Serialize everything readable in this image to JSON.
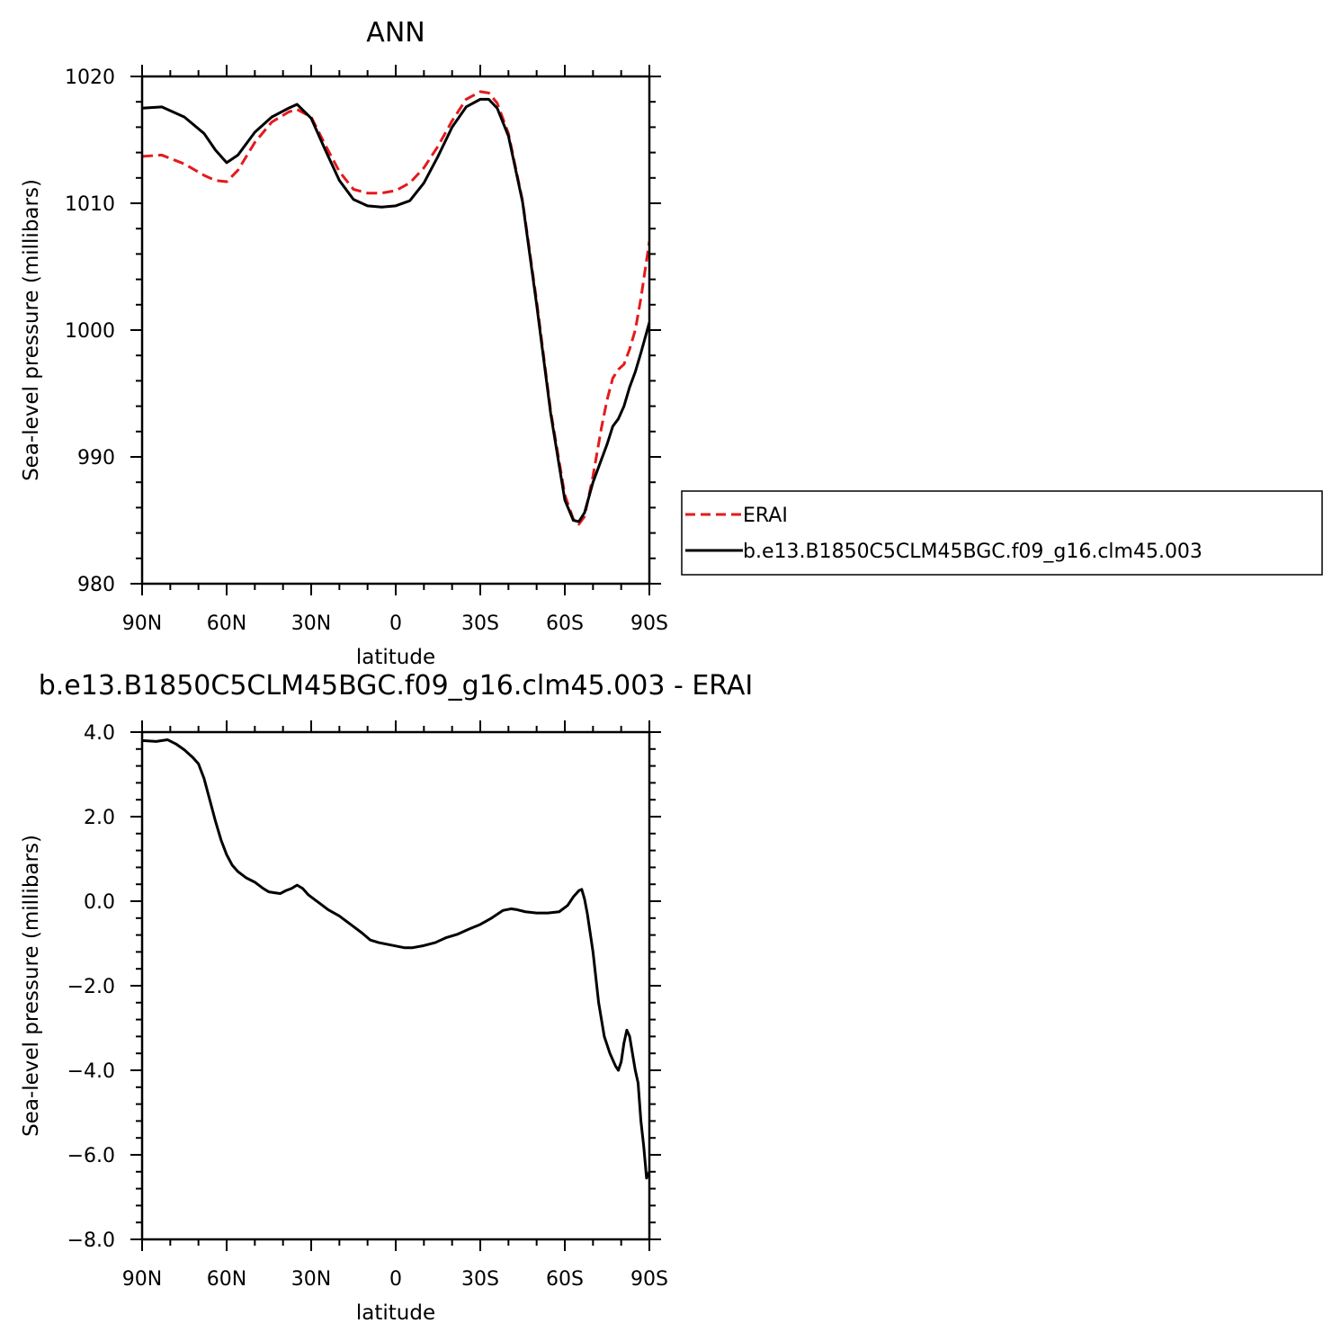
{
  "chart_data": [
    {
      "type": "line",
      "title": "ANN",
      "xlabel": "latitude",
      "ylabel": "Sea-level pressure (millibars)",
      "xlim": [
        90,
        -90
      ],
      "ylim": [
        980,
        1020
      ],
      "x_ticks": [
        90,
        60,
        30,
        0,
        -30,
        -60,
        -90
      ],
      "x_tick_labels": [
        "90N",
        "60N",
        "30N",
        "0",
        "30S",
        "60S",
        "90S"
      ],
      "y_ticks": [
        980,
        990,
        1000,
        1010,
        1020
      ],
      "y_tick_labels": [
        "980",
        "990",
        "1000",
        "1010",
        "1020"
      ],
      "legend": "right",
      "series": [
        {
          "name": "ERAI",
          "color": "#e41a1c",
          "dash": "dashed",
          "x": [
            90,
            83,
            75,
            68,
            64,
            60,
            56,
            50,
            44,
            38,
            35,
            30,
            25,
            20,
            15,
            10,
            5,
            0,
            -5,
            -10,
            -15,
            -20,
            -25,
            -30,
            -33,
            -36,
            -40,
            -45,
            -50,
            -55,
            -60,
            -63,
            -65,
            -67,
            -70,
            -73,
            -75,
            -77,
            -79,
            -81,
            -83,
            -85,
            -87,
            -90
          ],
          "y": [
            1013.7,
            1013.8,
            1013.1,
            1012.2,
            1011.8,
            1011.7,
            1012.6,
            1014.8,
            1016.4,
            1017.2,
            1017.4,
            1016.8,
            1014.6,
            1012.5,
            1011.1,
            1010.8,
            1010.8,
            1011.0,
            1011.6,
            1012.8,
            1014.5,
            1016.5,
            1018.2,
            1018.8,
            1018.7,
            1017.9,
            1015.5,
            1010.2,
            1002.3,
            993.6,
            987.0,
            985.1,
            984.7,
            985.3,
            988.5,
            992.3,
            994.5,
            996.2,
            996.9,
            997.3,
            998.5,
            1000.0,
            1002.5,
            1007.0
          ]
        },
        {
          "name": "b.e13.B1850C5CLM45BGC.f09_g16.clm45.003",
          "color": "#000000",
          "dash": "solid",
          "x": [
            90,
            83,
            75,
            68,
            64,
            60,
            56,
            50,
            44,
            38,
            35,
            30,
            25,
            20,
            15,
            10,
            5,
            0,
            -5,
            -10,
            -15,
            -20,
            -25,
            -30,
            -33,
            -36,
            -40,
            -45,
            -50,
            -55,
            -60,
            -63,
            -65,
            -67,
            -70,
            -73,
            -75,
            -77,
            -79,
            -81,
            -83,
            -85,
            -87,
            -90
          ],
          "y": [
            1017.5,
            1017.6,
            1016.8,
            1015.5,
            1014.2,
            1013.2,
            1013.8,
            1015.6,
            1016.8,
            1017.5,
            1017.8,
            1016.7,
            1014.2,
            1011.8,
            1010.3,
            1009.8,
            1009.7,
            1009.8,
            1010.2,
            1011.6,
            1013.7,
            1016.0,
            1017.6,
            1018.2,
            1018.2,
            1017.5,
            1015.3,
            1010.1,
            1002.0,
            993.4,
            986.6,
            985.0,
            984.9,
            985.6,
            988.0,
            989.8,
            991.0,
            992.4,
            993.0,
            994.0,
            995.5,
            996.7,
            998.2,
            1000.6
          ]
        }
      ]
    },
    {
      "type": "line",
      "title": "b.e13.B1850C5CLM45BGC.f09_g16.clm45.003 - ERAI",
      "xlabel": "latitude",
      "ylabel": "Sea-level pressure (millibars)",
      "xlim": [
        90,
        -90
      ],
      "ylim": [
        -8.0,
        4.0
      ],
      "x_ticks": [
        90,
        60,
        30,
        0,
        -30,
        -60,
        -90
      ],
      "x_tick_labels": [
        "90N",
        "60N",
        "30N",
        "0",
        "30S",
        "60S",
        "90S"
      ],
      "y_ticks": [
        -8.0,
        -6.0,
        -4.0,
        -2.0,
        0.0,
        2.0,
        4.0
      ],
      "y_tick_labels": [
        "−8.0",
        "−6.0",
        "−4.0",
        "−2.0",
        "0.0",
        "2.0",
        "4.0"
      ],
      "series": [
        {
          "color": "#000000",
          "dash": "solid",
          "x": [
            90,
            85,
            81,
            78,
            75,
            72,
            70,
            68,
            66,
            64,
            62,
            60,
            58,
            56,
            53,
            50,
            47,
            45,
            43,
            41,
            39,
            37,
            35,
            33,
            31,
            29,
            27,
            24,
            20,
            16,
            12,
            9,
            6,
            3,
            0,
            -3,
            -6,
            -10,
            -14,
            -18,
            -22,
            -26,
            -30,
            -34,
            -38,
            -41,
            -43,
            -46,
            -50,
            -54,
            -58,
            -61,
            -63,
            -65,
            -66,
            -67,
            -68,
            -70,
            -72,
            -74,
            -76,
            -78,
            -79,
            -80,
            -81,
            -82,
            -83,
            -84,
            -85,
            -86,
            -87,
            -88,
            -89,
            -90
          ],
          "y": [
            3.8,
            3.78,
            3.82,
            3.72,
            3.58,
            3.4,
            3.25,
            2.9,
            2.4,
            1.9,
            1.45,
            1.1,
            0.85,
            0.7,
            0.55,
            0.45,
            0.3,
            0.22,
            0.2,
            0.18,
            0.25,
            0.3,
            0.38,
            0.3,
            0.15,
            0.05,
            -0.05,
            -0.2,
            -0.35,
            -0.55,
            -0.75,
            -0.92,
            -0.98,
            -1.02,
            -1.06,
            -1.1,
            -1.1,
            -1.05,
            -0.98,
            -0.86,
            -0.78,
            -0.66,
            -0.55,
            -0.4,
            -0.22,
            -0.18,
            -0.2,
            -0.25,
            -0.28,
            -0.28,
            -0.25,
            -0.1,
            0.1,
            0.25,
            0.28,
            0.05,
            -0.3,
            -1.2,
            -2.4,
            -3.2,
            -3.6,
            -3.9,
            -4.0,
            -3.8,
            -3.35,
            -3.05,
            -3.2,
            -3.6,
            -4.0,
            -4.3,
            -5.2,
            -5.8,
            -6.55,
            -6.4
          ]
        }
      ]
    }
  ],
  "legend": {
    "entries": [
      {
        "label": "ERAI",
        "color": "#e41a1c",
        "dash": "dashed"
      },
      {
        "label": "b.e13.B1850C5CLM45BGC.f09_g16.clm45.003",
        "color": "#000000",
        "dash": "solid"
      }
    ]
  }
}
